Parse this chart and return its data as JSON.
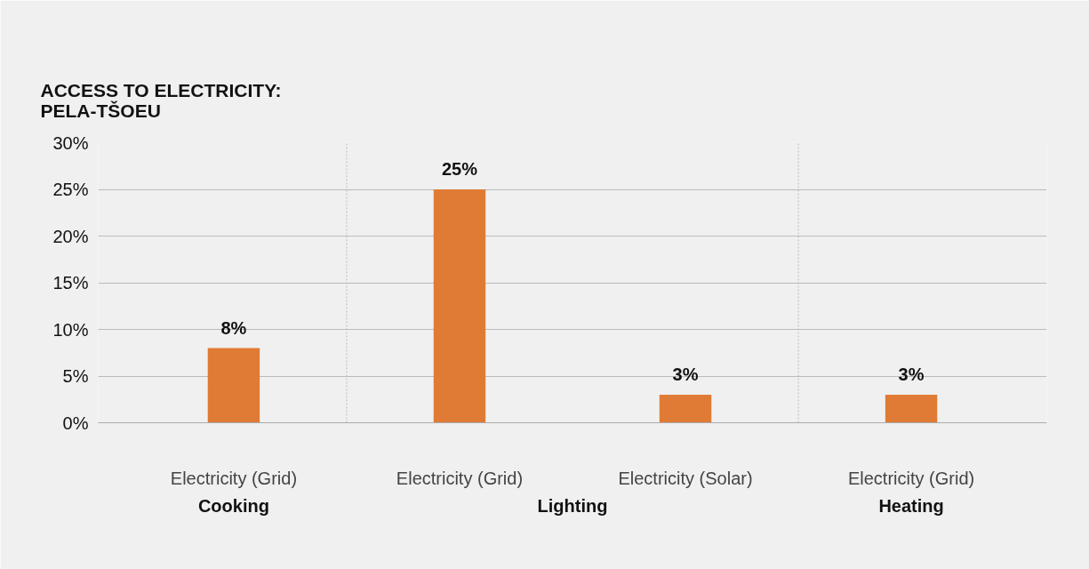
{
  "chart_data": {
    "type": "bar",
    "title": "ACCESS TO ELECTRICITY:\nPELA-TŠOEU",
    "categories": [
      "Electricity (Grid)",
      "Electricity (Grid)",
      "Electricity (Solar)",
      "Electricity (Grid)"
    ],
    "values": [
      8,
      25,
      3,
      3
    ],
    "color": "#e07b35",
    "value_labels": [
      "8%",
      "25%",
      "3%",
      "3%"
    ],
    "ylim": [
      0,
      30
    ],
    "yticks": [
      {
        "value": 0,
        "label": "0%"
      },
      {
        "value": 5,
        "label": "5%"
      },
      {
        "value": 10,
        "label": "10%"
      },
      {
        "value": 15,
        "label": "15%"
      },
      {
        "value": 20,
        "label": "20%"
      },
      {
        "value": 25,
        "label": "25%"
      },
      {
        "value": 30,
        "label": "30%"
      }
    ],
    "grid": "y",
    "annotations": [
      "Cooking",
      "Lighting",
      "Heating"
    ]
  }
}
